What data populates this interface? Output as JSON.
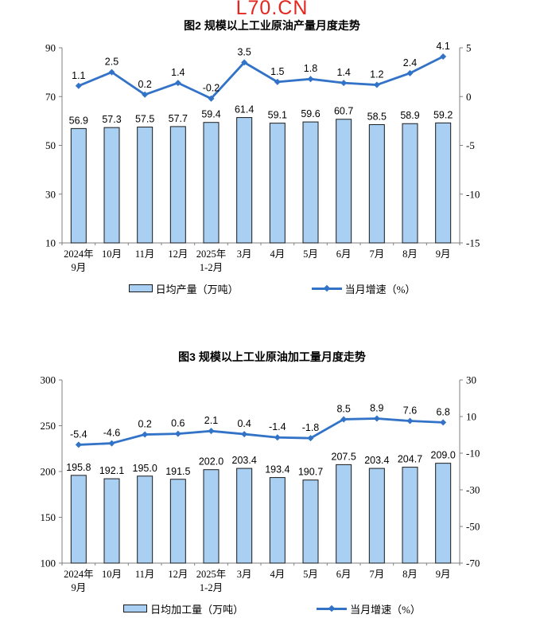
{
  "watermark": "L70.CN",
  "colors": {
    "bar_fill": "#a9d0f2",
    "bar_border": "#1a1a1a",
    "line": "#3273c8",
    "watermark": "#e5261f",
    "axis": "#7f7f7f",
    "text": "#000000"
  },
  "chart_data": [
    {
      "type": "bar",
      "title": "图2 规模以上工业原油产量月度走势",
      "categories": [
        [
          "2024年",
          "9月"
        ],
        [
          "10月"
        ],
        [
          "11月"
        ],
        [
          "12月"
        ],
        [
          "2025年",
          "1-2月"
        ],
        [
          "3月"
        ],
        [
          "4月"
        ],
        [
          "5月"
        ],
        [
          "6月"
        ],
        [
          "7月"
        ],
        [
          "8月"
        ],
        [
          "9月"
        ]
      ],
      "series": [
        {
          "name": "日均产量（万吨）",
          "kind": "bar",
          "axis": "left",
          "values": [
            56.9,
            57.3,
            57.5,
            57.7,
            59.4,
            61.4,
            59.1,
            59.6,
            60.7,
            58.5,
            58.9,
            59.2
          ]
        },
        {
          "name": "当月增速（%）",
          "kind": "line",
          "axis": "right",
          "values": [
            1.1,
            2.5,
            0.2,
            1.4,
            -0.2,
            3.5,
            1.5,
            1.8,
            1.4,
            1.2,
            2.4,
            4.1
          ]
        }
      ],
      "left_axis": {
        "min": 10,
        "max": 90,
        "ticks": [
          10,
          30,
          50,
          70,
          90
        ]
      },
      "right_axis": {
        "min": -15,
        "max": 5,
        "ticks": [
          -15,
          -10,
          -5,
          0,
          5
        ]
      },
      "grid": false,
      "legend_position": "bottom"
    },
    {
      "type": "bar",
      "title": "图3 规模以上工业原油加工量月度走势",
      "categories": [
        [
          "2024年",
          "9月"
        ],
        [
          "10月"
        ],
        [
          "11月"
        ],
        [
          "12月"
        ],
        [
          "2025年",
          "1-2月"
        ],
        [
          "3月"
        ],
        [
          "4月"
        ],
        [
          "5月"
        ],
        [
          "6月"
        ],
        [
          "7月"
        ],
        [
          "8月"
        ],
        [
          "9月"
        ]
      ],
      "series": [
        {
          "name": "日均加工量（万吨）",
          "kind": "bar",
          "axis": "left",
          "values": [
            195.8,
            192.1,
            195.0,
            191.5,
            202.0,
            203.4,
            193.4,
            190.7,
            207.5,
            203.4,
            204.7,
            209.0
          ]
        },
        {
          "name": "当月增速（%）",
          "kind": "line",
          "axis": "right",
          "values": [
            -5.4,
            -4.6,
            0.2,
            0.6,
            2.1,
            0.4,
            -1.4,
            -1.8,
            8.5,
            8.9,
            7.6,
            6.8
          ]
        }
      ],
      "left_axis": {
        "min": 100,
        "max": 300,
        "ticks": [
          100,
          150,
          200,
          250,
          300
        ]
      },
      "right_axis": {
        "min": -70,
        "max": 30,
        "ticks": [
          -70,
          -50,
          -30,
          -10,
          10,
          30
        ]
      },
      "grid": false,
      "legend_position": "bottom"
    }
  ]
}
